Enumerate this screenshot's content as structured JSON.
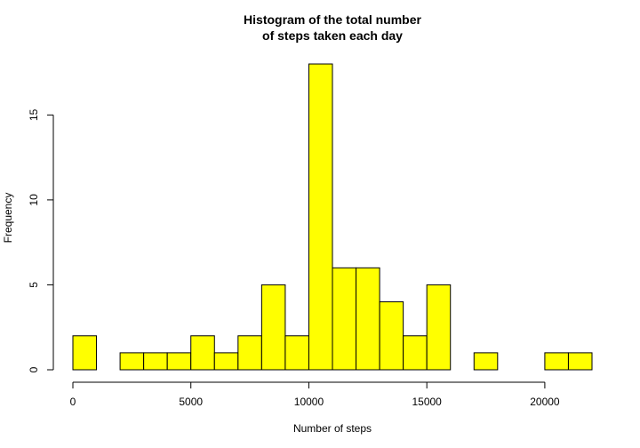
{
  "chart_data": {
    "type": "bar",
    "title_lines": [
      "Histogram of the total number",
      "of steps taken each day"
    ],
    "xlabel": "Number of steps",
    "ylabel": "Frequency",
    "bin_width": 1000,
    "bin_starts": [
      0,
      1000,
      2000,
      3000,
      4000,
      5000,
      6000,
      7000,
      8000,
      9000,
      10000,
      11000,
      12000,
      13000,
      14000,
      15000,
      16000,
      17000,
      18000,
      19000,
      20000,
      21000
    ],
    "values": [
      2,
      0,
      1,
      1,
      1,
      2,
      1,
      2,
      5,
      2,
      18,
      6,
      6,
      4,
      2,
      5,
      0,
      1,
      0,
      0,
      1,
      1
    ],
    "xlim": [
      0,
      22000
    ],
    "ylim": [
      0,
      18
    ],
    "x_ticks": [
      0,
      5000,
      10000,
      15000,
      20000
    ],
    "x_tick_labels": [
      "0",
      "5000",
      "10000",
      "15000",
      "20000"
    ],
    "y_ticks": [
      0,
      5,
      10,
      15
    ],
    "y_tick_labels": [
      "0",
      "5",
      "10",
      "15"
    ],
    "bar_color": "#FFFF00",
    "bar_border_color": "#000000",
    "grid": false,
    "legend": "none"
  }
}
